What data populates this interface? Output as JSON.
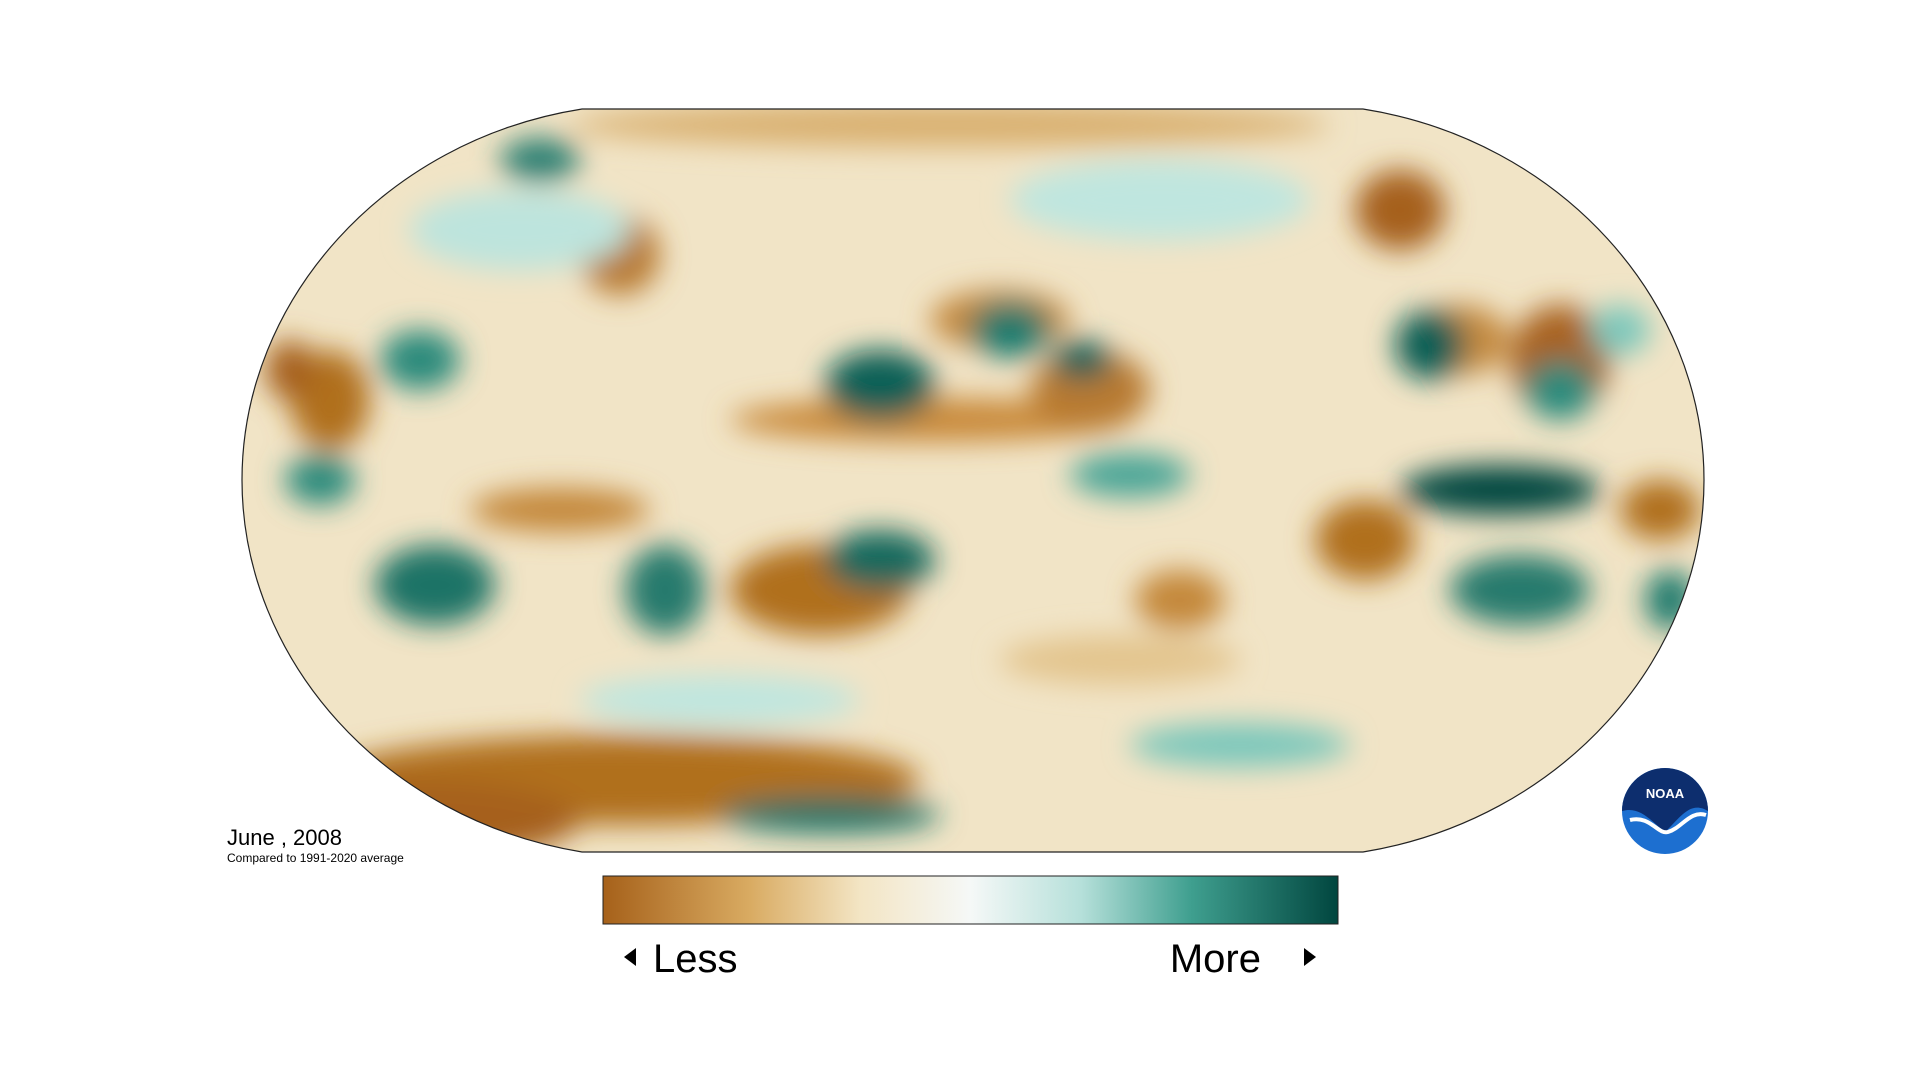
{
  "map": {
    "date_label": "June , 2008",
    "subtitle": "Compared to 1991-2020 average"
  },
  "legend": {
    "less": "Less",
    "more": "More"
  },
  "logo": {
    "text": "NOAA"
  }
}
